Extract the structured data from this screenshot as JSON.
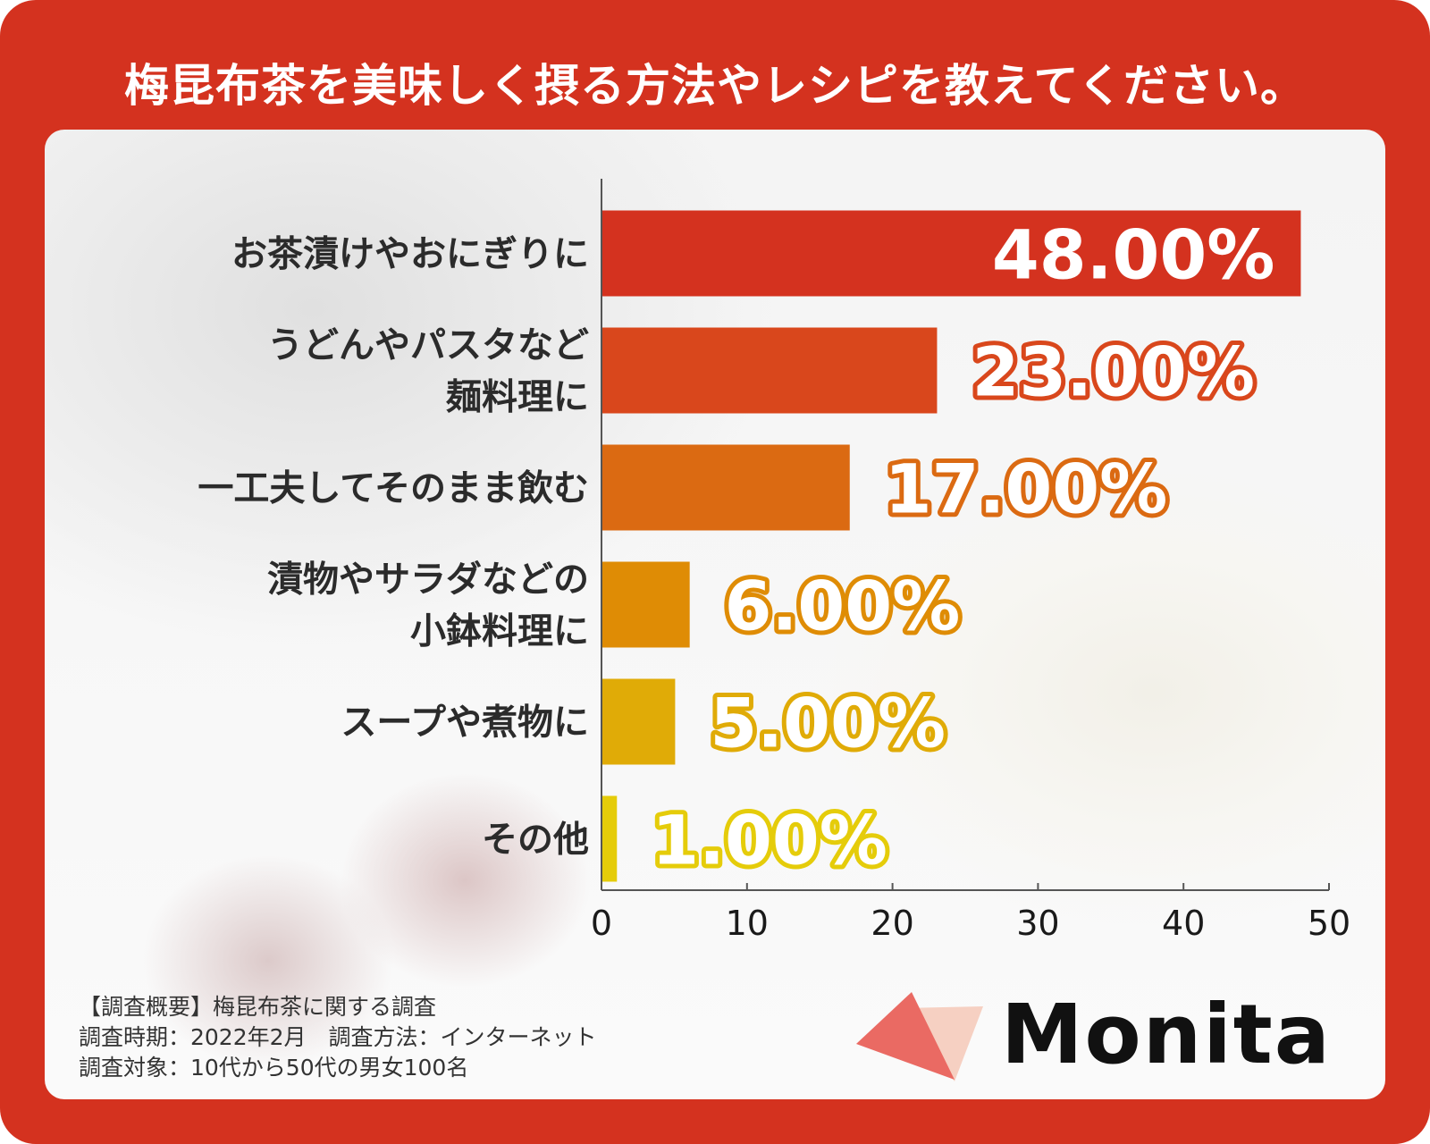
{
  "title": "梅昆布茶を美味しく摂る方法やレシピを教えてください。",
  "chart_data": {
    "type": "bar",
    "orientation": "horizontal",
    "categories": [
      [
        "お茶漬けやおにぎりに"
      ],
      [
        "うどんやパスタなど",
        "麺料理に"
      ],
      [
        "一工夫してそのまま飲む"
      ],
      [
        "漬物やサラダなどの",
        "小鉢料理に"
      ],
      [
        "スープや煮物に"
      ],
      [
        "その他"
      ]
    ],
    "values": [
      48,
      23,
      17,
      6,
      5,
      1
    ],
    "value_labels": [
      "48.00%",
      "23.00%",
      "17.00%",
      "6.00%",
      "5.00%",
      "1.00%"
    ],
    "bar_colors": [
      "#d4321f",
      "#d9471c",
      "#db6a12",
      "#df8c05",
      "#e0ab07",
      "#e5cc0a"
    ],
    "xlim": [
      0,
      50
    ],
    "xticks": [
      "0",
      "10",
      "20",
      "30",
      "40",
      "50"
    ],
    "grid": false
  },
  "footer": {
    "line1": "【調査概要】梅昆布茶に関する調査",
    "line2": "調査時期：2022年2月　調査方法：インターネット",
    "line3": "調査対象：10代から50代の男女100名"
  },
  "logo": {
    "text": "Monita",
    "triangle_color": "#ea6a63",
    "back_triangle_color": "#f6d0c2"
  }
}
